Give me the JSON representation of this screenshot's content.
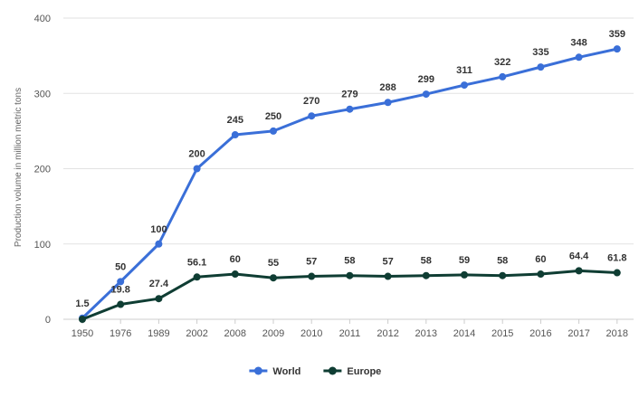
{
  "chart_data": {
    "type": "line",
    "categories": [
      "1950",
      "1976",
      "1989",
      "2002",
      "2008",
      "2009",
      "2010",
      "2011",
      "2012",
      "2013",
      "2014",
      "2015",
      "2016",
      "2017",
      "2018"
    ],
    "ylabel": "Production volume in million metric tons",
    "ylim": [
      0,
      400
    ],
    "yticks": [
      0,
      100,
      200,
      300,
      400
    ],
    "grid": true,
    "legend_position": "bottom-center",
    "series": [
      {
        "name": "World",
        "color": "#3a6fd8",
        "values": [
          1.5,
          50,
          100,
          200,
          245,
          250,
          270,
          279,
          288,
          299,
          311,
          322,
          335,
          348,
          359
        ],
        "labels": [
          "1.5",
          "50",
          "100",
          "200",
          "245",
          "250",
          "270",
          "279",
          "288",
          "299",
          "311",
          "322",
          "335",
          "348",
          "359"
        ]
      },
      {
        "name": "Europe",
        "color": "#0f3d33",
        "values": [
          0,
          19.8,
          27.4,
          56.1,
          60,
          55,
          57,
          58,
          57,
          58,
          59,
          58,
          60,
          64.4,
          61.8
        ],
        "labels": [
          "",
          "19.8",
          "27.4",
          "56.1",
          "60",
          "55",
          "57",
          "58",
          "57",
          "58",
          "59",
          "58",
          "60",
          "64.4",
          "61.8"
        ]
      }
    ]
  }
}
